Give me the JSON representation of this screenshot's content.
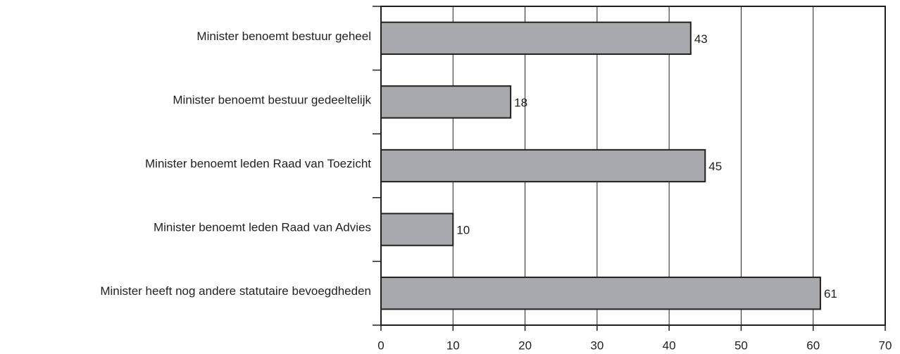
{
  "chart_data": {
    "type": "bar",
    "orientation": "horizontal",
    "categories": [
      "Minister benoemt bestuur geheel",
      "Minister benoemt bestuur gedeeltelijk",
      "Minister benoemt leden Raad van Toezicht",
      "Minister benoemt leden Raad van Advies",
      "Minister heeft nog andere statutaire bevoegdheden"
    ],
    "values": [
      43,
      18,
      45,
      10,
      61
    ],
    "color": "#a7a9ac",
    "xlim": [
      0,
      70
    ],
    "xticks": [
      0,
      10,
      20,
      30,
      40,
      50,
      60,
      70
    ],
    "grid": true
  }
}
